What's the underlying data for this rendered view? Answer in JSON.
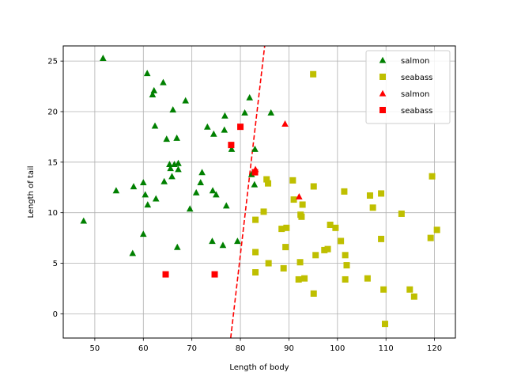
{
  "chart_data": {
    "type": "scatter",
    "xlabel": "Length of body",
    "ylabel": "Length of tail",
    "xlim": [
      43.5,
      124.3
    ],
    "ylim": [
      -2.4,
      26.5
    ],
    "xticks": [
      50,
      60,
      70,
      80,
      90,
      100,
      110,
      120
    ],
    "yticks": [
      0,
      5,
      10,
      15,
      20,
      25
    ],
    "grid": true,
    "legend": "top-right",
    "series": [
      {
        "name": "salmon",
        "marker": "triangle",
        "color": "#008000",
        "points": [
          [
            47.7,
            9.2
          ],
          [
            51.7,
            25.3
          ],
          [
            54.4,
            12.2
          ],
          [
            57.8,
            6.0
          ],
          [
            58.0,
            12.6
          ],
          [
            60.0,
            13.0
          ],
          [
            60.0,
            7.9
          ],
          [
            60.4,
            11.8
          ],
          [
            60.8,
            23.8
          ],
          [
            60.9,
            10.8
          ],
          [
            61.9,
            21.7
          ],
          [
            62.2,
            22.1
          ],
          [
            62.4,
            18.6
          ],
          [
            62.6,
            11.4
          ],
          [
            64.1,
            22.9
          ],
          [
            64.3,
            13.1
          ],
          [
            64.8,
            17.3
          ],
          [
            65.4,
            14.8
          ],
          [
            65.6,
            14.4
          ],
          [
            65.9,
            13.6
          ],
          [
            66.1,
            20.2
          ],
          [
            66.4,
            14.8
          ],
          [
            66.9,
            17.4
          ],
          [
            67.0,
            6.6
          ],
          [
            67.2,
            14.3
          ],
          [
            67.2,
            14.9
          ],
          [
            68.7,
            21.1
          ],
          [
            69.6,
            10.4
          ],
          [
            70.9,
            12.0
          ],
          [
            71.8,
            13.0
          ],
          [
            72.1,
            14.0
          ],
          [
            73.2,
            18.5
          ],
          [
            74.2,
            7.2
          ],
          [
            74.3,
            12.2
          ],
          [
            74.5,
            17.8
          ],
          [
            75.0,
            11.8
          ],
          [
            76.4,
            6.8
          ],
          [
            76.7,
            18.2
          ],
          [
            76.8,
            19.6
          ],
          [
            77.1,
            10.7
          ],
          [
            78.2,
            16.3
          ],
          [
            79.4,
            7.2
          ],
          [
            80.9,
            19.9
          ],
          [
            81.9,
            21.4
          ],
          [
            82.3,
            13.8
          ],
          [
            82.9,
            12.8
          ],
          [
            83.0,
            16.3
          ],
          [
            86.3,
            19.9
          ]
        ]
      },
      {
        "name": "seabass",
        "marker": "square",
        "color": "#bfbf00",
        "points": [
          [
            83.1,
            4.1
          ],
          [
            83.1,
            6.1
          ],
          [
            83.1,
            9.3
          ],
          [
            84.8,
            10.1
          ],
          [
            85.4,
            13.3
          ],
          [
            85.7,
            12.9
          ],
          [
            85.8,
            5.0
          ],
          [
            88.5,
            8.4
          ],
          [
            88.9,
            4.5
          ],
          [
            89.3,
            6.6
          ],
          [
            89.5,
            8.5
          ],
          [
            90.8,
            13.2
          ],
          [
            91.0,
            11.3
          ],
          [
            92.0,
            3.4
          ],
          [
            92.3,
            5.1
          ],
          [
            92.4,
            9.8
          ],
          [
            92.6,
            9.6
          ],
          [
            92.8,
            10.8
          ],
          [
            93.2,
            3.5
          ],
          [
            95.0,
            23.7
          ],
          [
            95.1,
            2.0
          ],
          [
            95.1,
            12.6
          ],
          [
            95.5,
            5.8
          ],
          [
            97.3,
            6.3
          ],
          [
            98.0,
            6.4
          ],
          [
            98.5,
            8.8
          ],
          [
            99.6,
            8.5
          ],
          [
            100.7,
            7.2
          ],
          [
            101.4,
            12.1
          ],
          [
            101.6,
            3.4
          ],
          [
            101.6,
            5.8
          ],
          [
            101.9,
            4.8
          ],
          [
            106.2,
            3.5
          ],
          [
            106.7,
            11.7
          ],
          [
            107.3,
            10.5
          ],
          [
            109.0,
            11.9
          ],
          [
            109.0,
            7.4
          ],
          [
            109.5,
            2.4
          ],
          [
            109.8,
            -1.0
          ],
          [
            113.2,
            9.9
          ],
          [
            114.9,
            2.4
          ],
          [
            115.8,
            1.7
          ],
          [
            119.2,
            7.5
          ],
          [
            119.5,
            13.6
          ],
          [
            120.5,
            8.3
          ]
        ]
      },
      {
        "name": "salmon",
        "marker": "triangle",
        "color": "#ff0000",
        "points": [
          [
            83.1,
            14.3
          ],
          [
            89.2,
            18.8
          ],
          [
            92.1,
            11.6
          ]
        ]
      },
      {
        "name": "seabass",
        "marker": "square",
        "color": "#ff0000",
        "points": [
          [
            64.6,
            3.9
          ],
          [
            74.7,
            3.9
          ],
          [
            78.1,
            16.7
          ],
          [
            80.0,
            18.5
          ],
          [
            83.0,
            14.0
          ]
        ]
      }
    ],
    "boundary": {
      "style": "dashed",
      "color": "#ff0000",
      "points": [
        [
          78.0,
          -2.4
        ],
        [
          85.0,
          26.5
        ]
      ]
    }
  }
}
